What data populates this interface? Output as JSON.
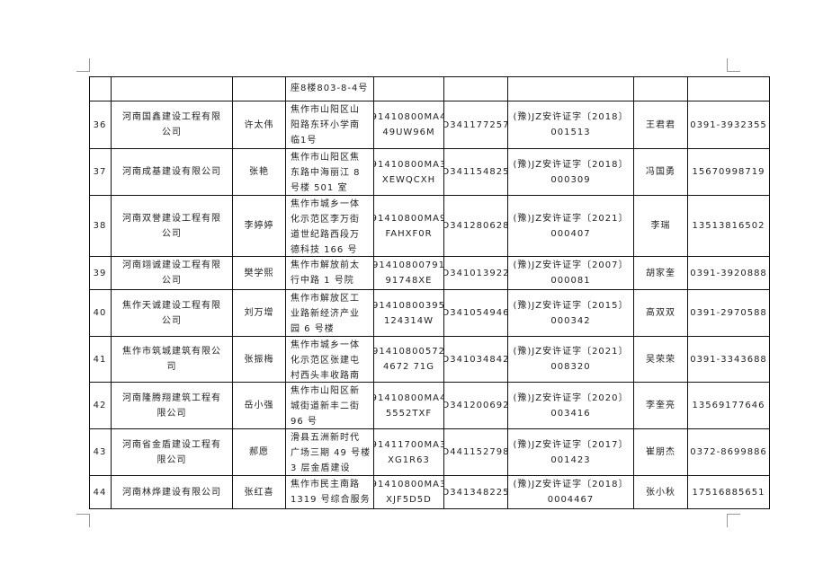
{
  "table": {
    "rows": [
      {
        "no": "",
        "company": [],
        "legal": [],
        "address": [
          "座8楼803-8-4号"
        ],
        "uscc": [],
        "license": [],
        "permit": [],
        "contact": [],
        "phone": []
      },
      {
        "no": "36",
        "company": [
          "河南国鑫建设工程有限",
          "公司"
        ],
        "legal": [
          "许太伟"
        ],
        "address": [
          "焦作市山阳区山",
          "阳路东环小学南",
          "临1号"
        ],
        "uscc": [
          "91410800MA4",
          "49UW96M"
        ],
        "license": [
          "D341177257"
        ],
        "permit": [
          "(豫)JZ安许证字〔2018〕",
          "001513"
        ],
        "contact": [
          "王君君"
        ],
        "phone": [
          "0391-3932355"
        ]
      },
      {
        "no": "37",
        "company": [
          "河南成基建设有限公司"
        ],
        "legal": [
          "张艳"
        ],
        "address": [
          "焦作市山阳区焦",
          "东路中海丽江 8",
          "号楼 501 室"
        ],
        "uscc": [
          "91410800MA3",
          "XEWQCXH"
        ],
        "license": [
          "D341154825"
        ],
        "permit": [
          "(豫)JZ安许证字〔2018〕",
          "000309"
        ],
        "contact": [
          "冯国勇"
        ],
        "phone": [
          "15670998719"
        ]
      },
      {
        "no": "38",
        "company": [
          "河南双誉建设工程有限",
          "公司"
        ],
        "legal": [
          "李婷婷"
        ],
        "address": [
          "焦作市城乡一体",
          "化示范区李万街",
          "道世纪路西段万",
          "德科技 166 号"
        ],
        "uscc": [
          "91410800MA9",
          "FAHXF0R"
        ],
        "license": [
          "D341280628"
        ],
        "permit": [
          "(豫)JZ安许证字〔2021〕",
          "000407"
        ],
        "contact": [
          "李瑞"
        ],
        "phone": [
          "13513816502"
        ]
      },
      {
        "no": "39",
        "company": [
          "河南翊诚建设工程有限",
          "公司"
        ],
        "legal": [
          "樊学熙"
        ],
        "address": [
          "焦作市解放前太",
          "行中路 1 号院"
        ],
        "uscc": [
          "91410800791",
          "91748XE"
        ],
        "license": [
          "D341013922"
        ],
        "permit": [
          "(豫)JZ安许证字〔2007〕",
          "000081"
        ],
        "contact": [
          "胡家奎"
        ],
        "phone": [
          "0391-3920888"
        ]
      },
      {
        "no": "40",
        "company": [
          "焦作天诚建设工程有限",
          "公司"
        ],
        "legal": [
          "刘万增"
        ],
        "address": [
          "焦作市解放区工",
          "业路新经济产业",
          "园 6 号楼"
        ],
        "uscc": [
          "91410800395",
          "124314W"
        ],
        "license": [
          "D341054946"
        ],
        "permit": [
          "(豫)JZ安许证字〔2015〕",
          "000342"
        ],
        "contact": [
          "高双双"
        ],
        "phone": [
          "0391-2970588"
        ]
      },
      {
        "no": "41",
        "company": [
          "焦作市筑城建筑有限公",
          "司"
        ],
        "legal": [
          "张振梅"
        ],
        "address": [
          "焦作市城乡一体",
          "化示范区张建屯",
          "村西头丰收路南"
        ],
        "uscc": [
          "91410800572",
          "4672 71G"
        ],
        "license": [
          "D341034842"
        ],
        "permit": [
          "(豫)JZ安许证字〔2021〕",
          "008320"
        ],
        "contact": [
          "吴荣荣"
        ],
        "phone": [
          "0391-3343688"
        ]
      },
      {
        "no": "42",
        "company": [
          "河南隆腾翔建筑工程有",
          "限公司"
        ],
        "legal": [
          "岳小强"
        ],
        "address": [
          "焦作市山阳区新",
          "城街道新丰二街",
          "96 号"
        ],
        "uscc": [
          "91410800MA4",
          "5552TXF"
        ],
        "license": [
          "D341200692"
        ],
        "permit": [
          "(豫)JZ安许证字〔2020〕",
          "003416"
        ],
        "contact": [
          "李奎亮"
        ],
        "phone": [
          "13569177646"
        ]
      },
      {
        "no": "43",
        "company": [
          "河南省金盾建设工程有",
          "限公司"
        ],
        "legal": [
          "郝愿"
        ],
        "address": [
          "滑县五洲新时代",
          "广场三期 49 号楼",
          "3 层金盾建设"
        ],
        "uscc": [
          "91411700MA3",
          "XG1R63"
        ],
        "license": [
          "D441152798"
        ],
        "permit": [
          "(豫)JZ安许证字〔2017〕",
          "001423"
        ],
        "contact": [
          "崔朋杰"
        ],
        "phone": [
          "0372-8699886"
        ]
      },
      {
        "no": "44",
        "company": [
          "河南林烨建设有限公司"
        ],
        "legal": [
          "张红喜"
        ],
        "address": [
          "焦作市民主南路",
          "1319 号综合服务"
        ],
        "uscc": [
          "91410800MA3",
          "XJF5D5D"
        ],
        "license": [
          "D341348225"
        ],
        "permit": [
          "(豫)JZ安许证字〔2018〕",
          "0004467"
        ],
        "contact": [
          "张小秋"
        ],
        "phone": [
          "17516885651"
        ]
      }
    ]
  }
}
